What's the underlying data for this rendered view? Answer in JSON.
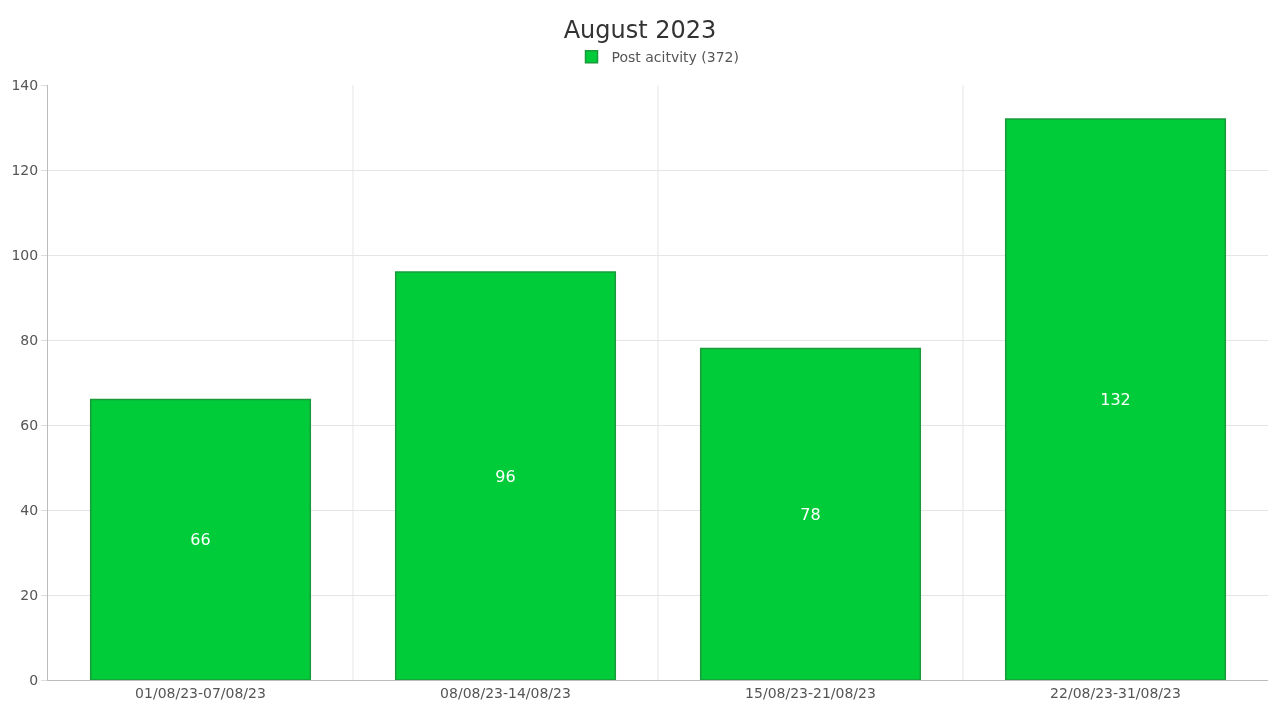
{
  "chart_data": {
    "type": "bar",
    "title": "August 2023",
    "categories": [
      "01/08/23-07/08/23",
      "08/08/23-14/08/23",
      "15/08/23-21/08/23",
      "22/08/23-31/08/23"
    ],
    "series": [
      {
        "name": "Post acitvity (372)",
        "color": "#00cc3a",
        "values": [
          66,
          96,
          78,
          132
        ]
      }
    ],
    "ylim": [
      0,
      140
    ],
    "yticks": [
      0,
      20,
      40,
      60,
      80,
      100,
      120,
      140
    ],
    "grid": true,
    "legend": "top",
    "data_labels": true
  }
}
